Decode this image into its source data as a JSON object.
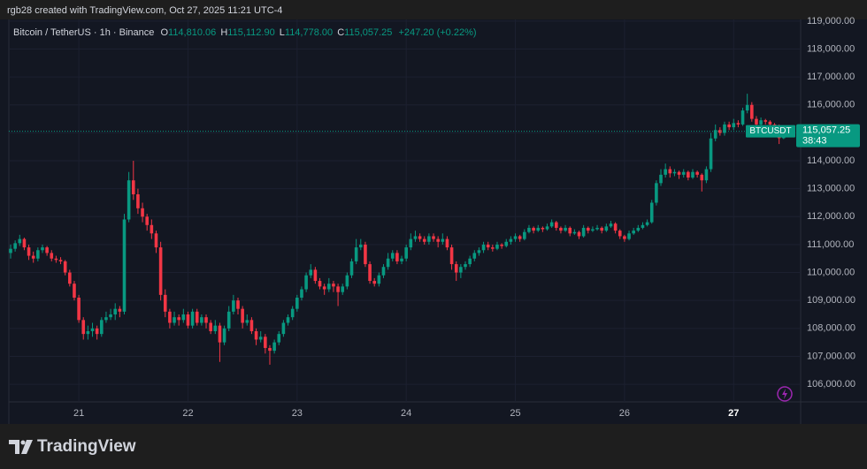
{
  "header": "rgb28 created with TradingView.com, Oct 27, 2025 11:21 UTC-4",
  "watermark": "TradingView",
  "chart_data": {
    "type": "candlestick",
    "title": "Bitcoin / TetherUS · 1h · Binance",
    "ohlc_prefixes": [
      "O",
      "H",
      "L",
      "C"
    ],
    "ohlc_labels": [
      "114,810.06",
      "115,112.90",
      "114,778.00",
      "115,057.25"
    ],
    "change_label": "+247.20 (+0.22%)",
    "symbol": "BTCUSDT",
    "last_price_label": "115,057.25",
    "countdown": "38:43",
    "up_color": "#089981",
    "down_color": "#f23645",
    "grid": true,
    "ylim": [
      105370,
      119060
    ],
    "yticks": [
      {
        "value": 106000,
        "label": "106,000.00"
      },
      {
        "value": 107000,
        "label": "107,000.00"
      },
      {
        "value": 108000,
        "label": "108,000.00"
      },
      {
        "value": 109000,
        "label": "109,000.00"
      },
      {
        "value": 110000,
        "label": "110,000.00"
      },
      {
        "value": 111000,
        "label": "111,000.00"
      },
      {
        "value": 112000,
        "label": "112,000.00"
      },
      {
        "value": 113000,
        "label": "113,000.00"
      },
      {
        "value": 114000,
        "label": "114,000.00"
      },
      {
        "value": 115000,
        "label": "115,000.00"
      },
      {
        "value": 116000,
        "label": "116,000.00"
      },
      {
        "value": 117000,
        "label": "117,000.00"
      },
      {
        "value": 118000,
        "label": "118,000.00"
      },
      {
        "value": 119000,
        "label": "119,000.00"
      }
    ],
    "categories": [
      null,
      null,
      null,
      null,
      null,
      null,
      null,
      null,
      null,
      null,
      null,
      null,
      null,
      null,
      null,
      "21",
      null,
      null,
      null,
      null,
      null,
      null,
      null,
      null,
      null,
      null,
      null,
      null,
      null,
      null,
      null,
      null,
      null,
      null,
      null,
      null,
      null,
      null,
      null,
      "22",
      null,
      null,
      null,
      null,
      null,
      null,
      null,
      null,
      null,
      null,
      null,
      null,
      null,
      null,
      null,
      null,
      null,
      null,
      null,
      null,
      null,
      null,
      null,
      "23",
      null,
      null,
      null,
      null,
      null,
      null,
      null,
      null,
      null,
      null,
      null,
      null,
      null,
      null,
      null,
      null,
      null,
      null,
      null,
      null,
      null,
      null,
      null,
      "24",
      null,
      null,
      null,
      null,
      null,
      null,
      null,
      null,
      null,
      null,
      null,
      null,
      null,
      null,
      null,
      null,
      null,
      null,
      null,
      null,
      null,
      null,
      null,
      "25",
      null,
      null,
      null,
      null,
      null,
      null,
      null,
      null,
      null,
      null,
      null,
      null,
      null,
      null,
      null,
      null,
      null,
      null,
      null,
      null,
      null,
      null,
      null,
      "26",
      null,
      null,
      null,
      null,
      null,
      null,
      null,
      null,
      null,
      null,
      null,
      null,
      null,
      null,
      null,
      null,
      null,
      null,
      null,
      null,
      null,
      null,
      null,
      "27",
      null,
      null,
      null,
      null,
      null,
      null,
      null,
      null,
      null,
      null,
      null
    ],
    "candles": [
      [
        110700,
        111000,
        110500,
        110850
      ],
      [
        110850,
        111150,
        110750,
        111050
      ],
      [
        111050,
        111350,
        110950,
        111200
      ],
      [
        111200,
        111250,
        110800,
        110900
      ],
      [
        110900,
        111000,
        110450,
        110600
      ],
      [
        110600,
        110750,
        110350,
        110500
      ],
      [
        110500,
        110900,
        110400,
        110800
      ],
      [
        110800,
        111000,
        110700,
        110900
      ],
      [
        110900,
        110950,
        110600,
        110700
      ],
      [
        110700,
        110800,
        110400,
        110500
      ],
      [
        110500,
        110600,
        110350,
        110450
      ],
      [
        110450,
        110550,
        110300,
        110400
      ],
      [
        110400,
        110450,
        109900,
        110000
      ],
      [
        110000,
        110100,
        109500,
        109600
      ],
      [
        109600,
        109700,
        109000,
        109100
      ],
      [
        109100,
        109200,
        108200,
        108300
      ],
      [
        108300,
        108400,
        107600,
        107800
      ],
      [
        107800,
        108100,
        107600,
        107900
      ],
      [
        107900,
        108200,
        107700,
        108000
      ],
      [
        108000,
        108100,
        107600,
        107800
      ],
      [
        107800,
        108400,
        107700,
        108300
      ],
      [
        108300,
        108600,
        108200,
        108400
      ],
      [
        108400,
        108700,
        108300,
        108500
      ],
      [
        108500,
        108900,
        108300,
        108700
      ],
      [
        108700,
        108800,
        108400,
        108600
      ],
      [
        108600,
        112100,
        108500,
        111900
      ],
      [
        111900,
        113600,
        111800,
        113300
      ],
      [
        113300,
        114000,
        112600,
        112800
      ],
      [
        112800,
        113000,
        112100,
        112300
      ],
      [
        112300,
        112500,
        111800,
        112000
      ],
      [
        112000,
        112100,
        111500,
        111700
      ],
      [
        111700,
        111900,
        111200,
        111400
      ],
      [
        111400,
        111500,
        110700,
        110900
      ],
      [
        110900,
        111100,
        109000,
        109200
      ],
      [
        109200,
        109400,
        108400,
        108600
      ],
      [
        108600,
        108700,
        108000,
        108200
      ],
      [
        108200,
        108600,
        108100,
        108400
      ],
      [
        108400,
        108500,
        108100,
        108300
      ],
      [
        108300,
        108700,
        108200,
        108500
      ],
      [
        108500,
        108600,
        108000,
        108100
      ],
      [
        108100,
        108700,
        108000,
        108600
      ],
      [
        108600,
        108700,
        108100,
        108200
      ],
      [
        108200,
        108500,
        108100,
        108400
      ],
      [
        108400,
        108500,
        108000,
        108200
      ],
      [
        108200,
        108300,
        107800,
        107900
      ],
      [
        107900,
        108300,
        107800,
        108100
      ],
      [
        108100,
        108200,
        106800,
        107500
      ],
      [
        107500,
        108100,
        107400,
        108000
      ],
      [
        108000,
        108800,
        107900,
        108600
      ],
      [
        108600,
        109200,
        108500,
        109000
      ],
      [
        109000,
        109100,
        108500,
        108700
      ],
      [
        108700,
        108800,
        108000,
        108200
      ],
      [
        108200,
        108500,
        108100,
        108300
      ],
      [
        108300,
        108400,
        107800,
        107900
      ],
      [
        107900,
        108000,
        107400,
        107600
      ],
      [
        107600,
        107900,
        107500,
        107700
      ],
      [
        107700,
        107800,
        107100,
        107300
      ],
      [
        107300,
        107400,
        106700,
        107200
      ],
      [
        107200,
        107600,
        107100,
        107500
      ],
      [
        107500,
        107900,
        107400,
        107800
      ],
      [
        107800,
        108300,
        107700,
        108200
      ],
      [
        108200,
        108500,
        108100,
        108400
      ],
      [
        108400,
        108800,
        108300,
        108700
      ],
      [
        108700,
        109200,
        108600,
        109100
      ],
      [
        109100,
        109500,
        109000,
        109400
      ],
      [
        109400,
        110000,
        109300,
        109900
      ],
      [
        109900,
        110300,
        109800,
        110100
      ],
      [
        110100,
        110200,
        109600,
        109700
      ],
      [
        109700,
        109800,
        109400,
        109500
      ],
      [
        109500,
        109600,
        109200,
        109400
      ],
      [
        109400,
        109800,
        109300,
        109600
      ],
      [
        109600,
        109700,
        109300,
        109500
      ],
      [
        109500,
        109600,
        108800,
        109300
      ],
      [
        109300,
        109600,
        109200,
        109500
      ],
      [
        109500,
        110000,
        109400,
        109900
      ],
      [
        109900,
        110500,
        109800,
        110400
      ],
      [
        110400,
        111200,
        110300,
        110900
      ],
      [
        110900,
        111200,
        110800,
        111000
      ],
      [
        111000,
        111100,
        110200,
        110300
      ],
      [
        110300,
        110400,
        109600,
        109700
      ],
      [
        109700,
        109800,
        109500,
        109600
      ],
      [
        109600,
        110000,
        109500,
        109900
      ],
      [
        109900,
        110300,
        109800,
        110200
      ],
      [
        110200,
        110700,
        110100,
        110500
      ],
      [
        110500,
        110800,
        110400,
        110700
      ],
      [
        110700,
        110800,
        110300,
        110400
      ],
      [
        110400,
        110600,
        110300,
        110500
      ],
      [
        110500,
        111000,
        110400,
        110900
      ],
      [
        110900,
        111400,
        110800,
        111200
      ],
      [
        111200,
        111500,
        111100,
        111300
      ],
      [
        111300,
        111400,
        111100,
        111200
      ],
      [
        111200,
        111300,
        111000,
        111100
      ],
      [
        111100,
        111400,
        111000,
        111300
      ],
      [
        111300,
        111400,
        111100,
        111200
      ],
      [
        111200,
        111300,
        110900,
        111100
      ],
      [
        111100,
        111400,
        111000,
        111200
      ],
      [
        111200,
        111300,
        110800,
        110900
      ],
      [
        110900,
        111000,
        110100,
        110300
      ],
      [
        110300,
        110400,
        109700,
        110000
      ],
      [
        110000,
        110300,
        109800,
        110200
      ],
      [
        110200,
        110400,
        110100,
        110300
      ],
      [
        110300,
        110600,
        110200,
        110500
      ],
      [
        110500,
        110800,
        110400,
        110700
      ],
      [
        110700,
        110900,
        110600,
        110800
      ],
      [
        110800,
        111100,
        110700,
        111000
      ],
      [
        111000,
        111100,
        110800,
        110900
      ],
      [
        110900,
        111000,
        110750,
        110850
      ],
      [
        110850,
        111100,
        110800,
        111000
      ],
      [
        111000,
        111050,
        110850,
        110950
      ],
      [
        110950,
        111200,
        110900,
        111100
      ],
      [
        111100,
        111300,
        111000,
        111200
      ],
      [
        111200,
        111400,
        111100,
        111300
      ],
      [
        111300,
        111350,
        111100,
        111200
      ],
      [
        111200,
        111550,
        111150,
        111450
      ],
      [
        111450,
        111700,
        111400,
        111600
      ],
      [
        111600,
        111650,
        111400,
        111500
      ],
      [
        111500,
        111700,
        111450,
        111600
      ],
      [
        111600,
        111650,
        111450,
        111550
      ],
      [
        111550,
        111750,
        111500,
        111650
      ],
      [
        111650,
        111900,
        111600,
        111800
      ],
      [
        111800,
        111850,
        111500,
        111600
      ],
      [
        111600,
        111650,
        111400,
        111500
      ],
      [
        111500,
        111700,
        111450,
        111600
      ],
      [
        111600,
        111650,
        111300,
        111400
      ],
      [
        111400,
        111550,
        111350,
        111450
      ],
      [
        111450,
        111500,
        111200,
        111300
      ],
      [
        111300,
        111700,
        111250,
        111600
      ],
      [
        111600,
        111650,
        111400,
        111500
      ],
      [
        111500,
        111650,
        111450,
        111550
      ],
      [
        111550,
        111700,
        111500,
        111600
      ],
      [
        111600,
        111650,
        111400,
        111500
      ],
      [
        111500,
        111750,
        111450,
        111650
      ],
      [
        111650,
        111850,
        111600,
        111750
      ],
      [
        111750,
        111800,
        111400,
        111500
      ],
      [
        111500,
        111550,
        111200,
        111300
      ],
      [
        111300,
        111350,
        111100,
        111200
      ],
      [
        111200,
        111500,
        111150,
        111400
      ],
      [
        111400,
        111600,
        111350,
        111500
      ],
      [
        111500,
        111700,
        111450,
        111600
      ],
      [
        111600,
        111800,
        111550,
        111700
      ],
      [
        111700,
        111900,
        111650,
        111800
      ],
      [
        111800,
        112600,
        111750,
        112500
      ],
      [
        112500,
        113300,
        112400,
        113200
      ],
      [
        113200,
        113700,
        113100,
        113500
      ],
      [
        113500,
        113900,
        113400,
        113700
      ],
      [
        113700,
        113800,
        113400,
        113550
      ],
      [
        113550,
        113700,
        113450,
        113600
      ],
      [
        113600,
        113650,
        113350,
        113500
      ],
      [
        113500,
        113700,
        113400,
        113600
      ],
      [
        113600,
        113650,
        113300,
        113400
      ],
      [
        113400,
        113700,
        113350,
        113600
      ],
      [
        113600,
        113650,
        113400,
        113500
      ],
      [
        113500,
        113550,
        112900,
        113300
      ],
      [
        113300,
        113800,
        113200,
        113700
      ],
      [
        113700,
        115000,
        113600,
        114800
      ],
      [
        114800,
        115300,
        114700,
        115100
      ],
      [
        115100,
        115200,
        114900,
        115000
      ],
      [
        115000,
        115400,
        114900,
        115300
      ],
      [
        115300,
        115400,
        115100,
        115200
      ],
      [
        115200,
        115500,
        115100,
        115350
      ],
      [
        115350,
        115450,
        115200,
        115300
      ],
      [
        115300,
        115900,
        115250,
        115800
      ],
      [
        115800,
        116400,
        115700,
        116000
      ],
      [
        116000,
        116100,
        115400,
        115500
      ],
      [
        115500,
        115600,
        115200,
        115300
      ],
      [
        115300,
        115550,
        115250,
        115450
      ],
      [
        115450,
        115500,
        115300,
        115400
      ],
      [
        115400,
        115450,
        115200,
        115300
      ],
      [
        115300,
        115350,
        115100,
        115200
      ],
      [
        115200,
        115300,
        114600,
        114810.06
      ],
      [
        114810.06,
        115112.9,
        114778,
        115057.25
      ]
    ]
  }
}
